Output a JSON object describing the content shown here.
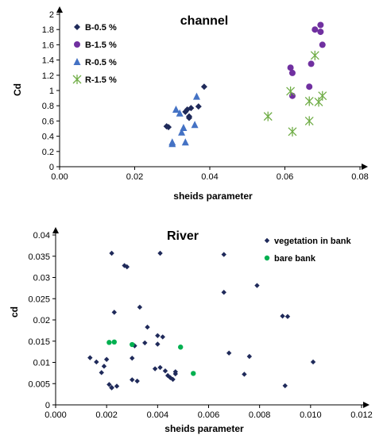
{
  "chart_data": [
    {
      "type": "scatter",
      "title": "channel",
      "xlabel": "sheids parameter",
      "ylabel": "Cd",
      "xlim": [
        0,
        0.08
      ],
      "ylim": [
        0,
        2
      ],
      "xticks": [
        "0.00",
        "0.02",
        "0.04",
        "0.06",
        "0.08"
      ],
      "yticks": [
        "0",
        "0.2",
        "0.4",
        "0.6",
        "0.8",
        "1",
        "1.2",
        "1.4",
        "1.6",
        "1.8",
        "2"
      ],
      "legend_position": "top-left",
      "series": [
        {
          "name": "B-0.5 %",
          "marker": "diamond",
          "color": "#1f2a5a",
          "x": [
            0.0285,
            0.029,
            0.0335,
            0.034,
            0.0345,
            0.0345,
            0.035,
            0.037,
            0.0385
          ],
          "y": [
            0.53,
            0.52,
            0.72,
            0.75,
            0.66,
            0.64,
            0.77,
            0.79,
            1.05
          ]
        },
        {
          "name": "B-1.5 %",
          "marker": "circle",
          "color": "#7030a0",
          "x": [
            0.0615,
            0.062,
            0.062,
            0.0665,
            0.067,
            0.068,
            0.0695,
            0.0695,
            0.07
          ],
          "y": [
            1.3,
            1.23,
            0.93,
            1.05,
            1.35,
            1.8,
            1.86,
            1.77,
            1.6
          ]
        },
        {
          "name": "R-0.5 %",
          "marker": "triangle",
          "color": "#4472c4",
          "x": [
            0.03,
            0.03,
            0.031,
            0.032,
            0.0325,
            0.033,
            0.0335,
            0.036,
            0.0365
          ],
          "y": [
            0.3,
            0.32,
            0.75,
            0.7,
            0.45,
            0.51,
            0.32,
            0.55,
            0.92
          ]
        },
        {
          "name": "R-1.5 %",
          "marker": "star",
          "color": "#70ad47",
          "x": [
            0.0555,
            0.0615,
            0.062,
            0.0665,
            0.0665,
            0.068,
            0.069,
            0.07
          ],
          "y": [
            0.66,
            0.99,
            0.46,
            0.6,
            0.86,
            1.46,
            0.85,
            0.93
          ]
        }
      ]
    },
    {
      "type": "scatter",
      "title": "River",
      "xlabel": "sheids parameter",
      "ylabel": "cd",
      "xlim": [
        0,
        0.012
      ],
      "ylim": [
        0,
        0.04
      ],
      "xticks": [
        "0.000",
        "0.002",
        "0.004",
        "0.006",
        "0.008",
        "0.010",
        "0.012"
      ],
      "yticks": [
        "0",
        "0.005",
        "0.01",
        "0.015",
        "0.02",
        "0.025",
        "0.03",
        "0.035",
        "0.04"
      ],
      "legend_position": "top-right",
      "series": [
        {
          "name": "vegetation in bank",
          "marker": "diamond",
          "color": "#1f2a5a",
          "x": [
            0.00135,
            0.0016,
            0.0018,
            0.0019,
            0.002,
            0.0021,
            0.0022,
            0.0022,
            0.0023,
            0.0024,
            0.0027,
            0.0028,
            0.003,
            0.0031,
            0.003,
            0.0032,
            0.0033,
            0.0035,
            0.0036,
            0.0039,
            0.004,
            0.004,
            0.0041,
            0.0042,
            0.0043,
            0.0044,
            0.0045,
            0.0046,
            0.0047,
            0.0047,
            0.0066,
            0.0066,
            0.0068,
            0.0074,
            0.0076,
            0.0079,
            0.0089,
            0.009,
            0.0091,
            0.0101,
            0.0041,
            0.0022
          ],
          "y": [
            0.0111,
            0.0101,
            0.0076,
            0.0091,
            0.0107,
            0.0048,
            0.004,
            0.0357,
            0.0218,
            0.0044,
            0.0328,
            0.0325,
            0.0059,
            0.0139,
            0.011,
            0.0056,
            0.023,
            0.0146,
            0.0183,
            0.0085,
            0.0143,
            0.0163,
            0.0088,
            0.016,
            0.008,
            0.0069,
            0.0064,
            0.006,
            0.0073,
            0.0078,
            0.0265,
            0.0354,
            0.0122,
            0.0072,
            0.0114,
            0.0281,
            0.0209,
            0.0045,
            0.0208,
            0.0101,
            0.0357,
            0.0041
          ]
        },
        {
          "name": "bare bank",
          "marker": "circle",
          "color": "#00b050",
          "x": [
            0.0021,
            0.0023,
            0.003,
            0.0049,
            0.0054
          ],
          "y": [
            0.0147,
            0.0148,
            0.0142,
            0.0136,
            0.0074
          ]
        }
      ]
    }
  ]
}
